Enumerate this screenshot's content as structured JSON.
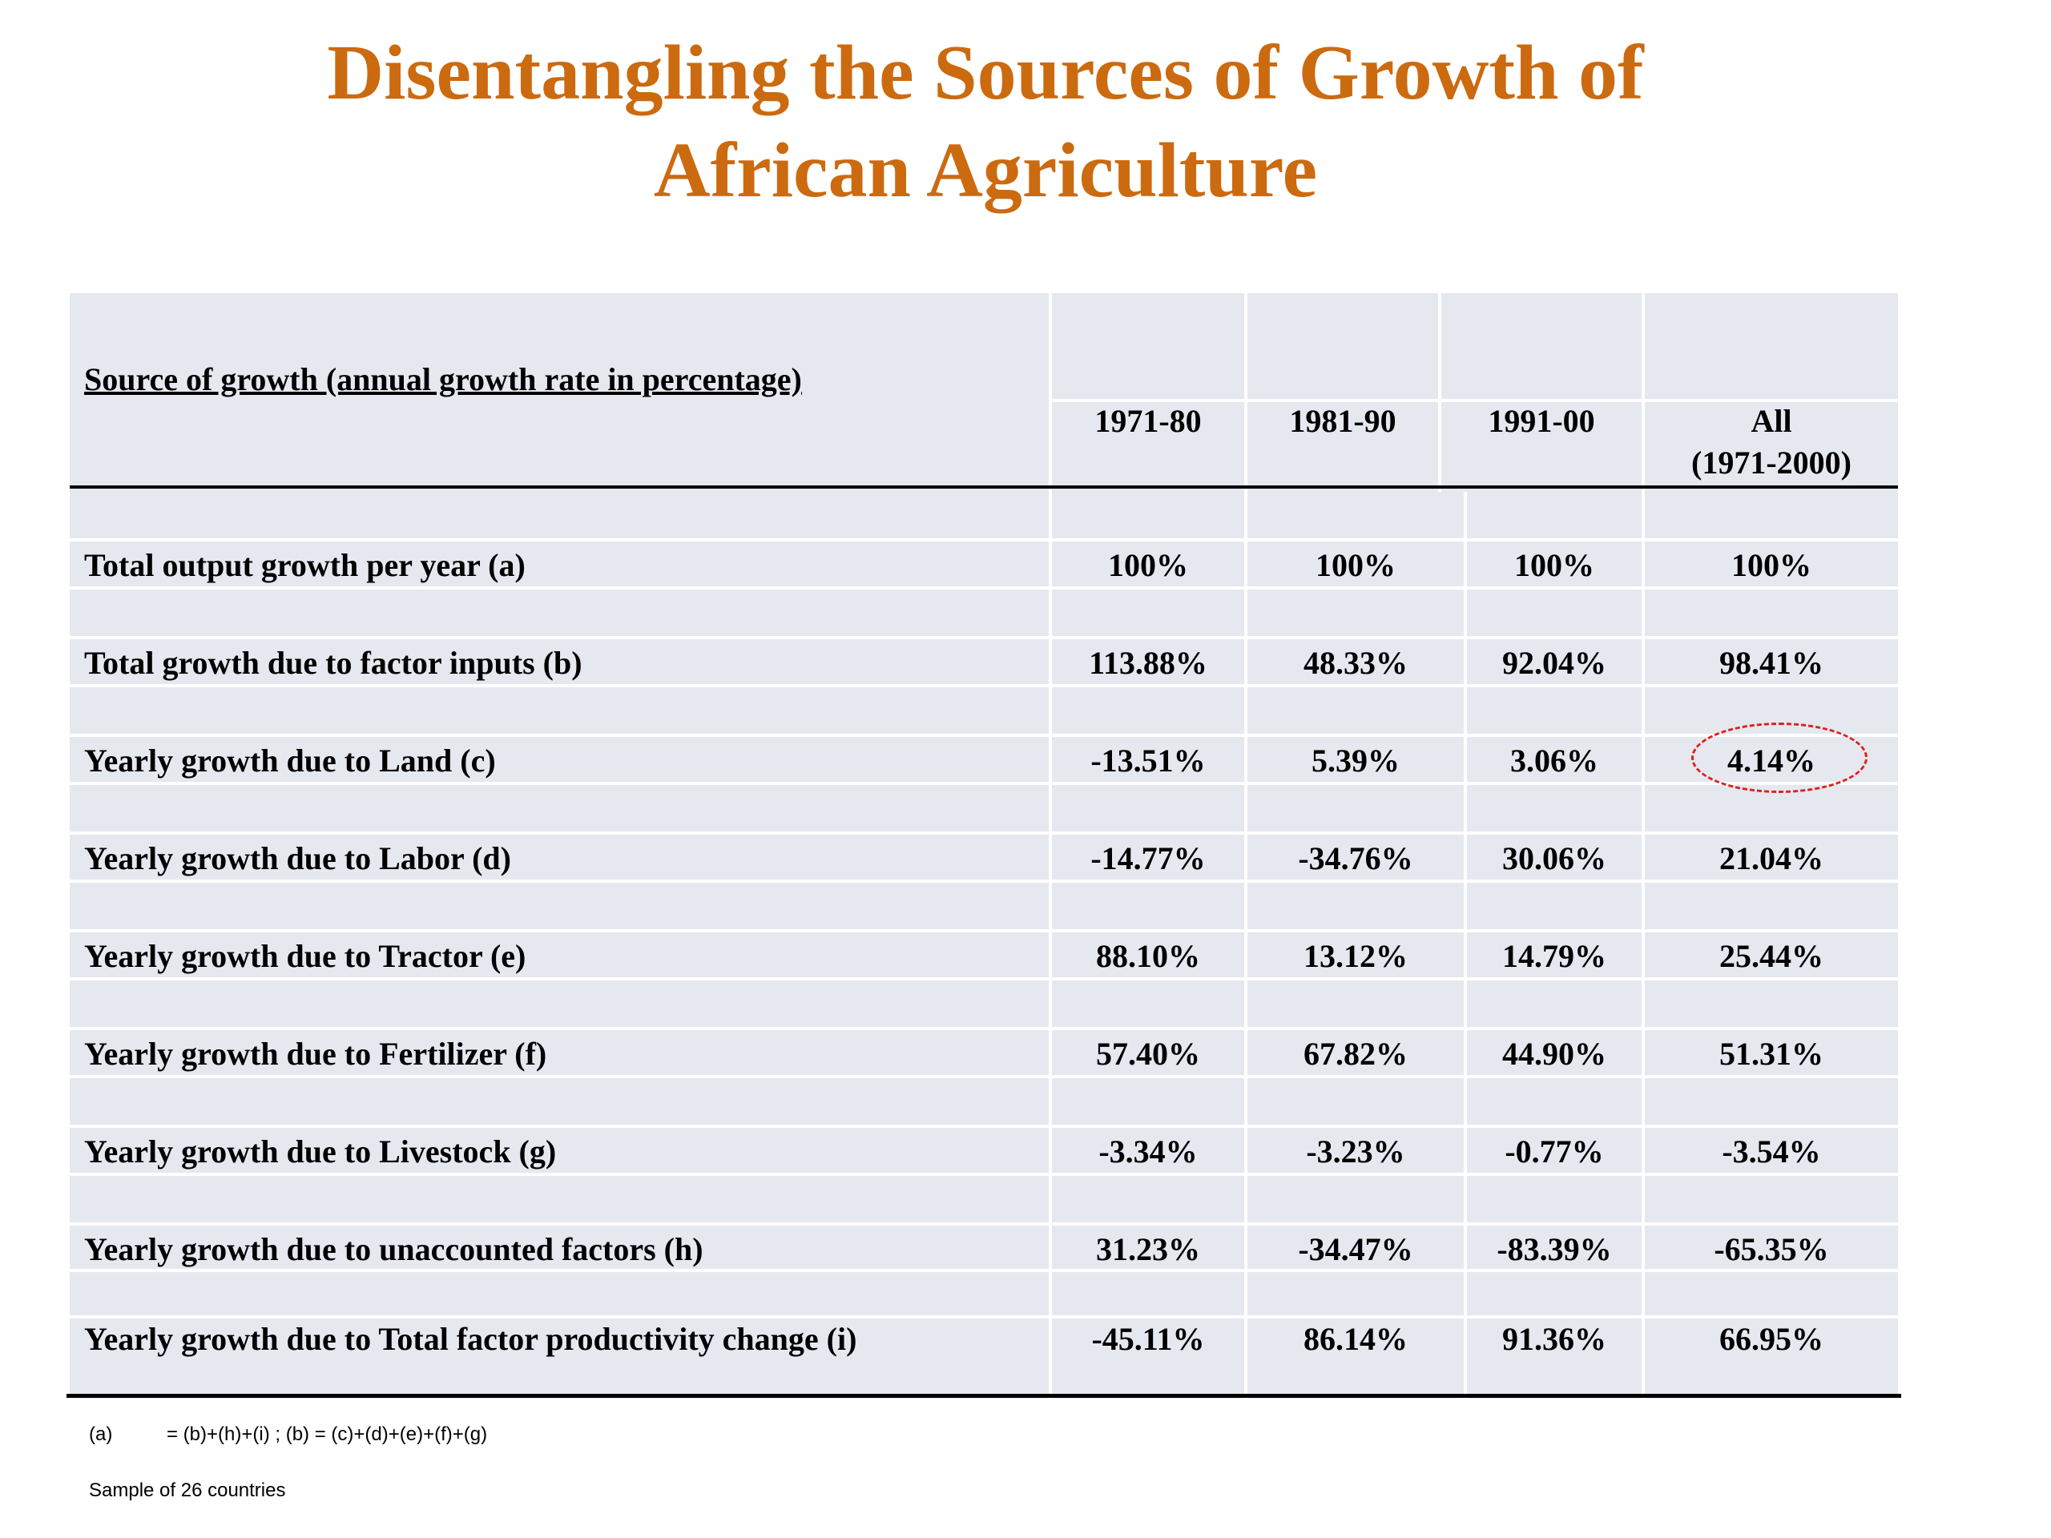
{
  "title": {
    "line1": "Disentangling the Sources of Growth of",
    "line2": "African Agriculture"
  },
  "table": {
    "header": {
      "label": "Source of growth (annual growth rate in percentage)",
      "columns": [
        "1971-80",
        "1981-90",
        "1991-00",
        "All"
      ],
      "all_sub": "(1971-2000)"
    },
    "rows": [
      {
        "label": "Total output growth per year  (a)",
        "values": [
          "100%",
          "100%",
          "100%",
          "100%"
        ]
      },
      {
        "label": "Total growth due to factor inputs  (b)",
        "values": [
          "113.88%",
          "48.33%",
          "92.04%",
          "98.41%"
        ]
      },
      {
        "label": "Yearly growth due to Land  (c)",
        "values": [
          "-13.51%",
          "5.39%",
          "3.06%",
          "4.14%"
        ]
      },
      {
        "label": "Yearly growth due to Labor  (d)",
        "values": [
          "-14.77%",
          "-34.76%",
          "30.06%",
          "21.04%"
        ]
      },
      {
        "label": "Yearly growth due to Tractor  (e)",
        "values": [
          "88.10%",
          "13.12%",
          "14.79%",
          "25.44%"
        ]
      },
      {
        "label": "Yearly growth due to Fertilizer  (f)",
        "values": [
          "57.40%",
          "67.82%",
          "44.90%",
          "51.31%"
        ]
      },
      {
        "label": "Yearly growth due to Livestock  (g)",
        "values": [
          "-3.34%",
          "-3.23%",
          "-0.77%",
          "-3.54%"
        ]
      },
      {
        "label": "Yearly growth due to unaccounted factors  (h)",
        "values": [
          "31.23%",
          "-34.47%",
          "-83.39%",
          "-65.35%"
        ]
      },
      {
        "label": "Yearly growth due to Total factor productivity change  (i)",
        "values": [
          "-45.11%",
          "86.14%",
          "91.36%",
          "66.95%"
        ]
      }
    ]
  },
  "footnotes": {
    "a_marker": "(a)",
    "a_formula": "= (b)+(h)+(i)   ;  (b) = (c)+(d)+(e)+(f)+(g)",
    "sample": "Sample of 26 countries"
  },
  "colors": {
    "title": "#cc6a10",
    "table_background": "#e6e8f0",
    "highlight_circle": "#e0201b"
  }
}
